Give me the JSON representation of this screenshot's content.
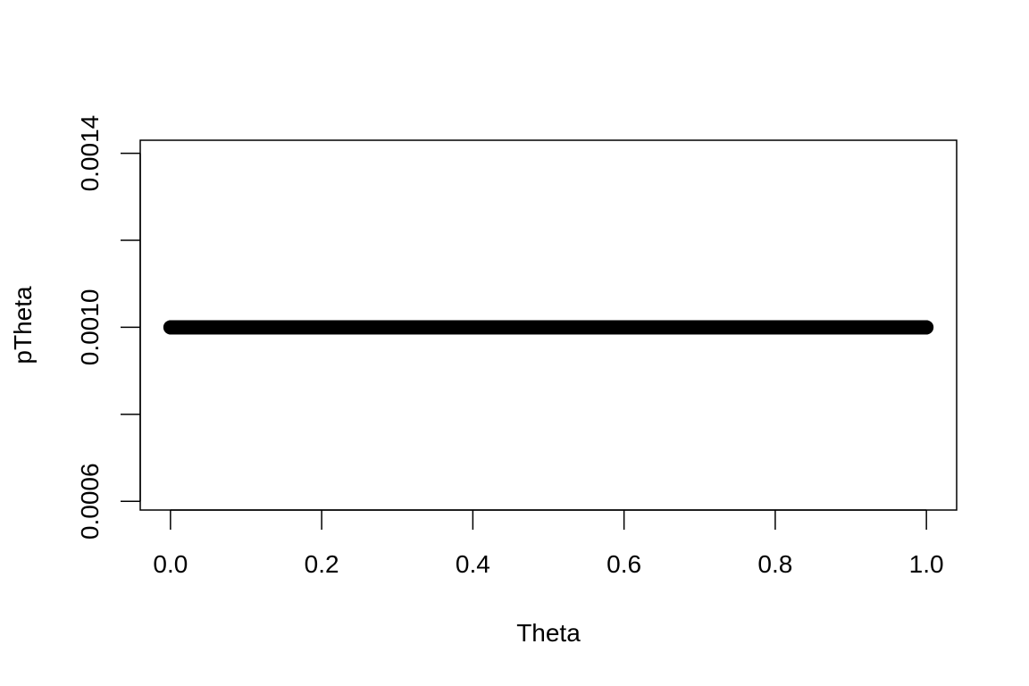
{
  "chart_data": {
    "type": "scatter",
    "title": "",
    "xlabel": "Theta",
    "ylabel": "pTheta",
    "xlim": [
      -0.04,
      1.04
    ],
    "ylim": [
      0.00058,
      0.00143
    ],
    "x_ticks": [
      0.0,
      0.2,
      0.4,
      0.6,
      0.8,
      1.0
    ],
    "x_tick_labels": [
      "0.0",
      "0.2",
      "0.4",
      "0.6",
      "0.8",
      "1.0"
    ],
    "y_ticks": [
      0.0006,
      0.0008,
      0.001,
      0.0012,
      0.0014
    ],
    "y_tick_labels": [
      "0.0006",
      "",
      "0.0010",
      "",
      "0.0014"
    ],
    "grid": false,
    "legend": "none",
    "marker": "filled-circle",
    "color": "#000000",
    "series": [
      {
        "x_start": 0.0,
        "x_end": 1.0,
        "n_points": 1001,
        "y_constant": 0.001
      }
    ]
  }
}
